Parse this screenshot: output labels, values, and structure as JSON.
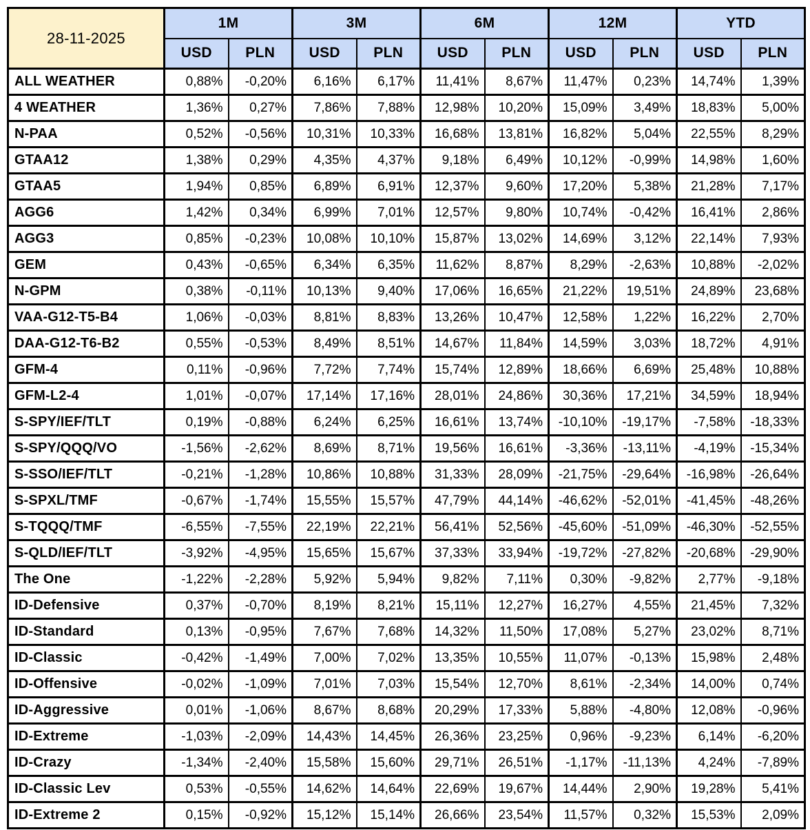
{
  "colors": {
    "date_cell_bg": "#FDF2CC",
    "header_bg": "#C9DAF8",
    "border": "#000000",
    "text": "#000000"
  },
  "chart_data": {
    "type": "table",
    "date": "28-11-2025",
    "period_groups": [
      "1M",
      "3M",
      "6M",
      "12M",
      "YTD"
    ],
    "currencies": [
      "USD",
      "PLN"
    ],
    "value_format": "percent, 2 decimals, comma decimal separator",
    "columns": [
      "1M USD",
      "1M PLN",
      "3M USD",
      "3M PLN",
      "6M USD",
      "6M PLN",
      "12M USD",
      "12M PLN",
      "YTD USD",
      "YTD PLN"
    ],
    "rows": [
      {
        "name": "ALL WEATHER",
        "values": [
          0.88,
          -0.2,
          6.16,
          6.17,
          11.41,
          8.67,
          11.47,
          0.23,
          14.74,
          1.39
        ]
      },
      {
        "name": "4 WEATHER",
        "values": [
          1.36,
          0.27,
          7.86,
          7.88,
          12.98,
          10.2,
          15.09,
          3.49,
          18.83,
          5.0
        ]
      },
      {
        "name": "N-PAA",
        "values": [
          0.52,
          -0.56,
          10.31,
          10.33,
          16.68,
          13.81,
          16.82,
          5.04,
          22.55,
          8.29
        ]
      },
      {
        "name": "GTAA12",
        "values": [
          1.38,
          0.29,
          4.35,
          4.37,
          9.18,
          6.49,
          10.12,
          -0.99,
          14.98,
          1.6
        ]
      },
      {
        "name": "GTAA5",
        "values": [
          1.94,
          0.85,
          6.89,
          6.91,
          12.37,
          9.6,
          17.2,
          5.38,
          21.28,
          7.17
        ]
      },
      {
        "name": "AGG6",
        "values": [
          1.42,
          0.34,
          6.99,
          7.01,
          12.57,
          9.8,
          10.74,
          -0.42,
          16.41,
          2.86
        ]
      },
      {
        "name": "AGG3",
        "values": [
          0.85,
          -0.23,
          10.08,
          10.1,
          15.87,
          13.02,
          14.69,
          3.12,
          22.14,
          7.93
        ]
      },
      {
        "name": "GEM",
        "values": [
          0.43,
          -0.65,
          6.34,
          6.35,
          11.62,
          8.87,
          8.29,
          -2.63,
          10.88,
          -2.02
        ]
      },
      {
        "name": "N-GPM",
        "values": [
          0.38,
          -0.11,
          10.13,
          9.4,
          17.06,
          16.65,
          21.22,
          19.51,
          24.89,
          23.68
        ]
      },
      {
        "name": "VAA-G12-T5-B4",
        "values": [
          1.06,
          -0.03,
          8.81,
          8.83,
          13.26,
          10.47,
          12.58,
          1.22,
          16.22,
          2.7
        ]
      },
      {
        "name": "DAA-G12-T6-B2",
        "values": [
          0.55,
          -0.53,
          8.49,
          8.51,
          14.67,
          11.84,
          14.59,
          3.03,
          18.72,
          4.91
        ]
      },
      {
        "name": "GFM-4",
        "values": [
          0.11,
          -0.96,
          7.72,
          7.74,
          15.74,
          12.89,
          18.66,
          6.69,
          25.48,
          10.88
        ]
      },
      {
        "name": "GFM-L2-4",
        "values": [
          1.01,
          -0.07,
          17.14,
          17.16,
          28.01,
          24.86,
          30.36,
          17.21,
          34.59,
          18.94
        ]
      },
      {
        "name": "S-SPY/IEF/TLT",
        "values": [
          0.19,
          -0.88,
          6.24,
          6.25,
          16.61,
          13.74,
          -10.1,
          -19.17,
          -7.58,
          -18.33
        ]
      },
      {
        "name": "S-SPY/QQQ/VO",
        "values": [
          -1.56,
          -2.62,
          8.69,
          8.71,
          19.56,
          16.61,
          -3.36,
          -13.11,
          -4.19,
          -15.34
        ]
      },
      {
        "name": "S-SSO/IEF/TLT",
        "values": [
          -0.21,
          -1.28,
          10.86,
          10.88,
          31.33,
          28.09,
          -21.75,
          -29.64,
          -16.98,
          -26.64
        ]
      },
      {
        "name": "S-SPXL/TMF",
        "values": [
          -0.67,
          -1.74,
          15.55,
          15.57,
          47.79,
          44.14,
          -46.62,
          -52.01,
          -41.45,
          -48.26
        ]
      },
      {
        "name": "S-TQQQ/TMF",
        "values": [
          -6.55,
          -7.55,
          22.19,
          22.21,
          56.41,
          52.56,
          -45.6,
          -51.09,
          -46.3,
          -52.55
        ]
      },
      {
        "name": "S-QLD/IEF/TLT",
        "values": [
          -3.92,
          -4.95,
          15.65,
          15.67,
          37.33,
          33.94,
          -19.72,
          -27.82,
          -20.68,
          -29.9
        ]
      },
      {
        "name": "The One",
        "values": [
          -1.22,
          -2.28,
          5.92,
          5.94,
          9.82,
          7.11,
          0.3,
          -9.82,
          2.77,
          -9.18
        ]
      },
      {
        "name": "ID-Defensive",
        "values": [
          0.37,
          -0.7,
          8.19,
          8.21,
          15.11,
          12.27,
          16.27,
          4.55,
          21.45,
          7.32
        ]
      },
      {
        "name": "ID-Standard",
        "values": [
          0.13,
          -0.95,
          7.67,
          7.68,
          14.32,
          11.5,
          17.08,
          5.27,
          23.02,
          8.71
        ]
      },
      {
        "name": "ID-Classic",
        "values": [
          -0.42,
          -1.49,
          7.0,
          7.02,
          13.35,
          10.55,
          11.07,
          -0.13,
          15.98,
          2.48
        ]
      },
      {
        "name": "ID-Offensive",
        "values": [
          -0.02,
          -1.09,
          7.01,
          7.03,
          15.54,
          12.7,
          8.61,
          -2.34,
          14.0,
          0.74
        ]
      },
      {
        "name": "ID-Aggressive",
        "values": [
          0.01,
          -1.06,
          8.67,
          8.68,
          20.29,
          17.33,
          5.88,
          -4.8,
          12.08,
          -0.96
        ]
      },
      {
        "name": "ID-Extreme",
        "values": [
          -1.03,
          -2.09,
          14.43,
          14.45,
          26.36,
          23.25,
          0.96,
          -9.23,
          6.14,
          -6.2
        ]
      },
      {
        "name": "ID-Crazy",
        "values": [
          -1.34,
          -2.4,
          15.58,
          15.6,
          29.71,
          26.51,
          -1.17,
          -11.13,
          4.24,
          -7.89
        ]
      },
      {
        "name": "ID-Classic Lev",
        "values": [
          0.53,
          -0.55,
          14.62,
          14.64,
          22.69,
          19.67,
          14.44,
          2.9,
          19.28,
          5.41
        ]
      },
      {
        "name": "ID-Extreme 2",
        "values": [
          0.15,
          -0.92,
          15.12,
          15.14,
          26.66,
          23.54,
          11.57,
          0.32,
          15.53,
          2.09
        ]
      }
    ]
  }
}
